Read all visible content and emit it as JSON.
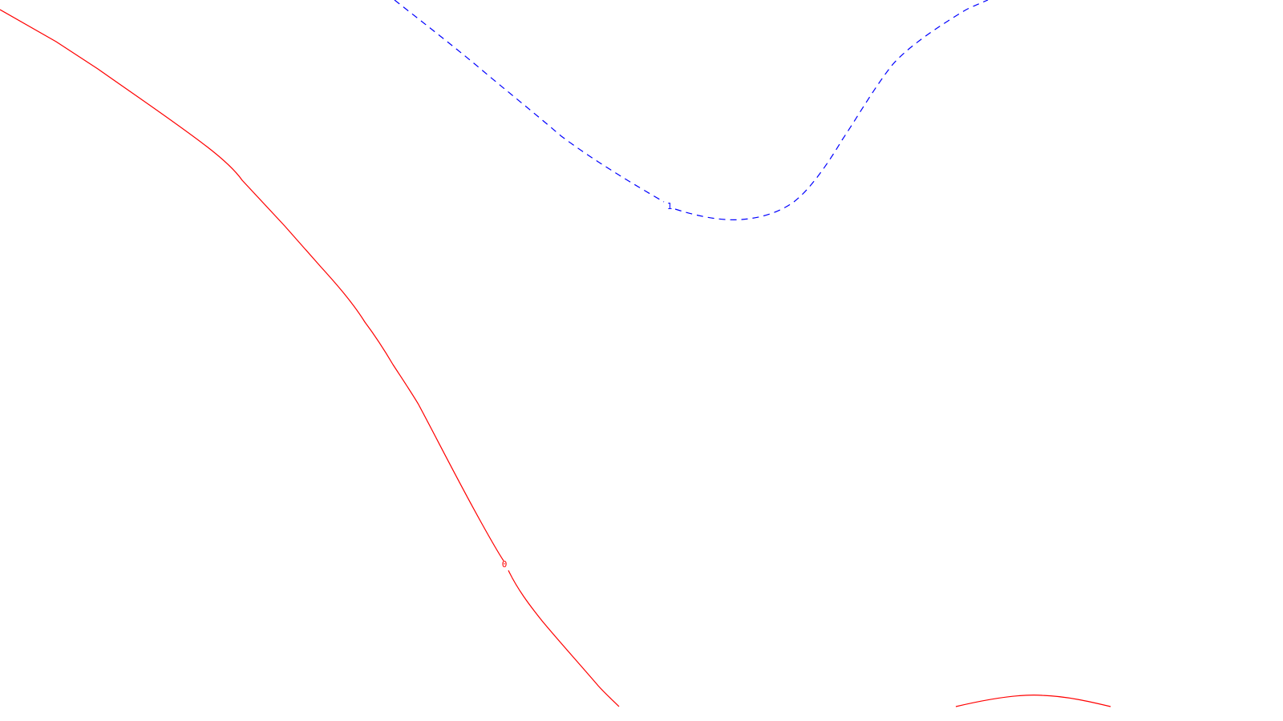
{
  "contours": [
    {
      "level_label": "0",
      "color": "#ff0000",
      "style": "solid"
    },
    {
      "level_label": "1",
      "color": "#0000ff",
      "style": "dashed"
    }
  ]
}
